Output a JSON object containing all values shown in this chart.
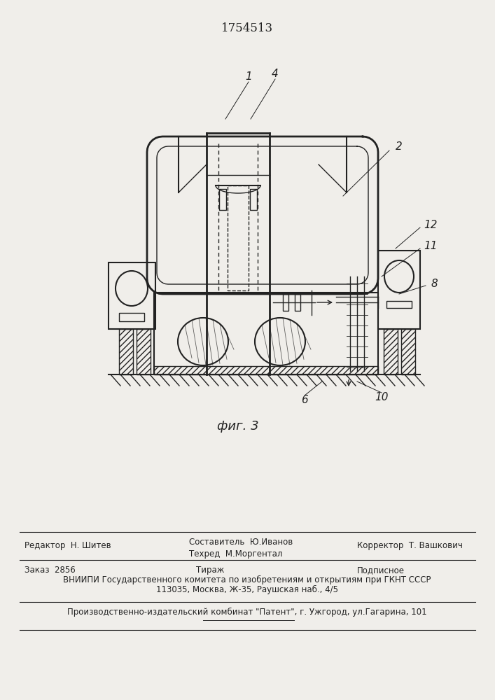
{
  "patent_number": "1754513",
  "fig_label": "фиг. 3",
  "bg_color": "#f0eeea",
  "line_color": "#222222",
  "footer": {
    "editor": "Редактор  Н. Шитев",
    "composer": "Составитель  Ю.Иванов",
    "techred": "Техред  М.Моргентал",
    "corrector": "Корректор  Т. Вашкович",
    "order": "Заказ  2856",
    "tirazh": "Тираж",
    "podpisnoe": "Подписное",
    "vniiipi_line1": "ВНИИПИ Государственного комитета по изобретениям и открытиям при ГКНТ СССР",
    "vniiipi_line2": "113035, Москва, Ж-35, Раушская наб., 4/5",
    "production": "Производственно-издательский комбинат \"Патент\", г. Ужгород, ул.Гагарина, 101"
  }
}
